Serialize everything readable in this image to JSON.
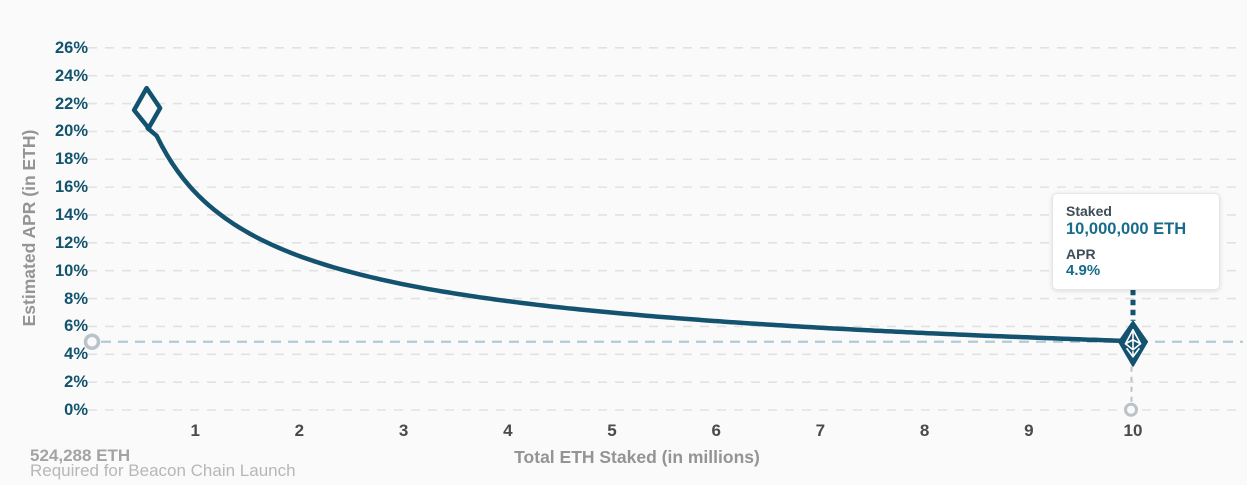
{
  "chart_data": {
    "type": "line",
    "title": "",
    "xlabel": "Total ETH Staked  (in millions)",
    "ylabel": "Estimated APR (in ETH)",
    "xlim": [
      0,
      11
    ],
    "ylim": [
      0,
      26
    ],
    "grid": "horizontal-dashed",
    "y_tick_values": [
      0,
      2,
      4,
      6,
      8,
      10,
      12,
      14,
      16,
      18,
      20,
      22,
      24,
      26
    ],
    "y_tick_labels": [
      "0%",
      "2%",
      "4%",
      "6%",
      "8%",
      "10%",
      "12%",
      "14%",
      "16%",
      "18%",
      "20%",
      "22%",
      "24%",
      "26%"
    ],
    "x_tick_values": [
      1,
      2,
      3,
      4,
      5,
      6,
      7,
      8,
      9,
      10
    ],
    "x_tick_labels": [
      "1",
      "2",
      "3",
      "4",
      "5",
      "6",
      "7",
      "8",
      "9",
      "10"
    ],
    "series": [
      {
        "name": "Estimated APR (in ETH)",
        "x": [
          0.524,
          1,
          2,
          3,
          4,
          5,
          6,
          7,
          8,
          9,
          10
        ],
        "y": [
          21.6,
          15.6,
          11.1,
          9.0,
          7.8,
          7.0,
          6.4,
          5.9,
          5.5,
          5.2,
          4.9
        ]
      }
    ],
    "curve_fit_constant": 15.63,
    "start_marker": {
      "x": 0.524,
      "y": 21.6,
      "shape": "hollow-diamond"
    },
    "end_marker": {
      "x": 10,
      "y": 4.9,
      "shape": "filled-eth-diamond"
    },
    "reference_line_y": 4.9,
    "legend": "none"
  },
  "tooltip": {
    "staked_label": "Staked",
    "staked_value": "10,000,000 ETH",
    "apr_label": "APR",
    "apr_value": "4.9%"
  },
  "footnote": {
    "value": "524,288 ETH",
    "caption": "Required for Beacon Chain Launch"
  },
  "icons": {
    "end_marker": "ethereum-logo-icon"
  },
  "colors": {
    "background": "#FAFAFA",
    "teal": "#14536F",
    "teal_text": "#12536D",
    "tooltip_teal": "#186B8B",
    "tooltip_dark": "#3E4E57",
    "grid": "#E2E2E2",
    "axis_title_gray": "#949494",
    "x_tick_gray": "#4A4A4A",
    "footnote_gray": "#A3A3A3",
    "footnote_light": "#B7B7B7",
    "reference_line": "#B3CAD7",
    "muted_marker": "#B9C3C9"
  }
}
